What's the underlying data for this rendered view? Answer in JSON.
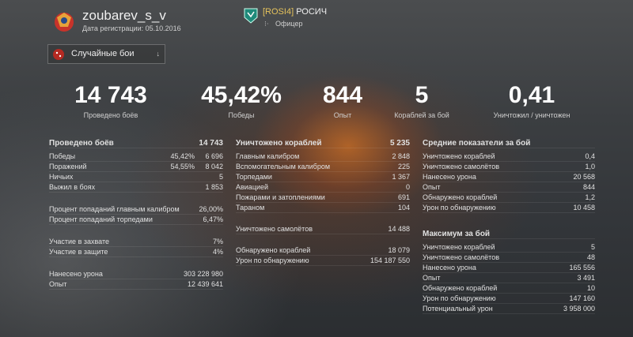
{
  "profile": {
    "username": "zoubarev_s_v",
    "registration": "Дата регистрации: 05.10.2016"
  },
  "clan": {
    "tag": "[ROSI4]",
    "name": "РОСИЧ",
    "rank": "Офицер"
  },
  "mode_select": {
    "label": "Случайные бои",
    "icon": "dice-icon"
  },
  "summary": [
    {
      "value": "14 743",
      "label": "Проведено боёв"
    },
    {
      "value": "45,42%",
      "label": "Победы"
    },
    {
      "value": "844",
      "label": "Опыт"
    },
    {
      "value": "5",
      "label": "Кораблей за бой"
    },
    {
      "value": "0,41",
      "label": "Уничтожил / уничтожен"
    }
  ],
  "battles": {
    "title": "Проведено боёв",
    "total": "14 743",
    "rows": [
      {
        "label": "Победы",
        "pct": "45,42%",
        "value": "6 696"
      },
      {
        "label": "Поражений",
        "pct": "54,55%",
        "value": "8 042"
      },
      {
        "label": "Ничьих",
        "value": "5"
      },
      {
        "label": "Выжил в боях",
        "value": "1 853"
      }
    ],
    "accuracy": [
      {
        "label": "Процент попаданий главным калибром",
        "value": "26,00%"
      },
      {
        "label": "Процент попаданий торпедами",
        "value": "6,47%"
      }
    ],
    "capture": [
      {
        "label": "Участие в захвате",
        "value": "7%"
      },
      {
        "label": "Участие в защите",
        "value": "4%"
      }
    ],
    "totals": [
      {
        "label": "Нанесено урона",
        "value": "303 228 980"
      },
      {
        "label": "Опыт",
        "value": "12 439 641"
      }
    ]
  },
  "destroyed": {
    "title": "Уничтожено кораблей",
    "total": "5 235",
    "rows": [
      {
        "label": "Главным калибром",
        "value": "2 848"
      },
      {
        "label": "Вспомогательным калибром",
        "value": "225"
      },
      {
        "label": "Торпедами",
        "value": "1 367"
      },
      {
        "label": "Авиацией",
        "value": "0"
      },
      {
        "label": "Пожарами и затоплениями",
        "value": "691"
      },
      {
        "label": "Тараном",
        "value": "104"
      }
    ],
    "planes": {
      "label": "Уничтожено самолётов",
      "value": "14 488"
    },
    "spotting": [
      {
        "label": "Обнаружено кораблей",
        "value": "18 079"
      },
      {
        "label": "Урон по обнаружению",
        "value": "154 187 550"
      }
    ]
  },
  "averages": {
    "title": "Средние показатели за бой",
    "rows": [
      {
        "label": "Уничтожено кораблей",
        "value": "0,4"
      },
      {
        "label": "Уничтожено самолётов",
        "value": "1,0"
      },
      {
        "label": "Нанесено урона",
        "value": "20 568"
      },
      {
        "label": "Опыт",
        "value": "844"
      },
      {
        "label": "Обнаружено кораблей",
        "value": "1,2"
      },
      {
        "label": "Урон по обнаружению",
        "value": "10 458"
      }
    ]
  },
  "maximums": {
    "title": "Максимум за бой",
    "rows": [
      {
        "label": "Уничтожено кораблей",
        "value": "5"
      },
      {
        "label": "Уничтожено самолётов",
        "value": "48"
      },
      {
        "label": "Нанесено урона",
        "value": "165 556"
      },
      {
        "label": "Опыт",
        "value": "3 491"
      },
      {
        "label": "Обнаружено кораблей",
        "value": "10"
      },
      {
        "label": "Урон по обнаружению",
        "value": "147 160"
      },
      {
        "label": "Потенциальный урон",
        "value": "3 958 000"
      }
    ]
  }
}
